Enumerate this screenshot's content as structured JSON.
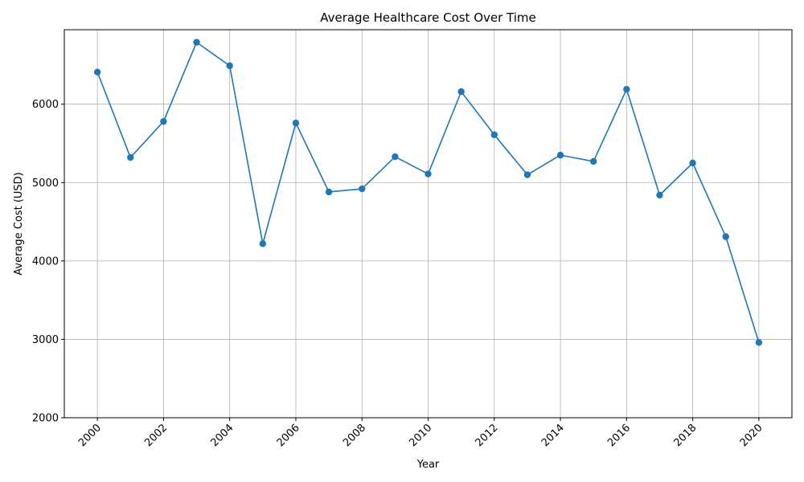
{
  "chart_data": {
    "type": "line",
    "title": "Average Healthcare Cost Over Time",
    "xlabel": "Year",
    "ylabel": "Average Cost (USD)",
    "x_range": [
      1999,
      2021
    ],
    "ylim": [
      2000,
      6950
    ],
    "x_ticks": [
      2000,
      2002,
      2004,
      2006,
      2008,
      2010,
      2012,
      2014,
      2016,
      2018,
      2020
    ],
    "y_ticks": [
      2000,
      3000,
      4000,
      5000,
      6000
    ],
    "x_tick_rotation": 45,
    "grid": true,
    "legend": "none",
    "series": [
      {
        "color": "#1f77b4",
        "marker": "circle",
        "x": [
          2000,
          2001,
          2002,
          2003,
          2004,
          2005,
          2006,
          2007,
          2008,
          2009,
          2010,
          2011,
          2012,
          2013,
          2014,
          2015,
          2016,
          2017,
          2018,
          2019,
          2020
        ],
        "y": [
          6410,
          5320,
          5780,
          6790,
          6490,
          4220,
          5760,
          4880,
          4920,
          5330,
          5110,
          6160,
          5610,
          5100,
          5350,
          5270,
          6190,
          4840,
          5250,
          4310,
          2960
        ]
      }
    ]
  }
}
